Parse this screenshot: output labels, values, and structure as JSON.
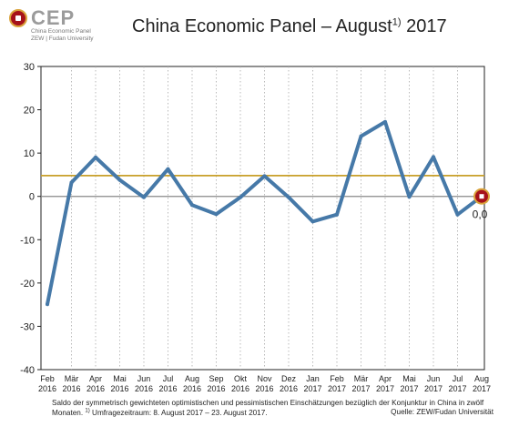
{
  "header": {
    "logo_text": "CEP",
    "logo_sub1": "China Economic Panel",
    "logo_sub2": "ZEW | Fudan University",
    "title_main": "China Economic Panel – August",
    "title_sup": "1)",
    "title_year": "2017"
  },
  "chart_data": {
    "type": "line",
    "x": [
      [
        "Feb",
        "2016"
      ],
      [
        "Mär",
        "2016"
      ],
      [
        "Apr",
        "2016"
      ],
      [
        "Mai",
        "2016"
      ],
      [
        "Jun",
        "2016"
      ],
      [
        "Jul",
        "2016"
      ],
      [
        "Aug",
        "2016"
      ],
      [
        "Sep",
        "2016"
      ],
      [
        "Okt",
        "2016"
      ],
      [
        "Nov",
        "2016"
      ],
      [
        "Dez",
        "2016"
      ],
      [
        "Jan",
        "2017"
      ],
      [
        "Feb",
        "2017"
      ],
      [
        "Mär",
        "2017"
      ],
      [
        "Apr",
        "2017"
      ],
      [
        "Mai",
        "2017"
      ],
      [
        "Jun",
        "2017"
      ],
      [
        "Jul",
        "2017"
      ],
      [
        "Aug",
        "2017"
      ]
    ],
    "series": [
      {
        "values": [
          -24.9,
          3.2,
          9.0,
          3.8,
          -0.2,
          6.3,
          -2.0,
          -4.1,
          -0.2,
          4.7,
          -0.2,
          -5.8,
          -4.2,
          13.9,
          17.2,
          -0.1,
          9.1,
          -4.2,
          0.0
        ],
        "color": "#4679a8"
      }
    ],
    "reference_line": {
      "value": 4.8,
      "color": "#c8a02a"
    },
    "zero_line_color": "#888888",
    "ylim": [
      -40,
      30
    ],
    "yticks": [
      30,
      20,
      10,
      0,
      -10,
      -20,
      -30,
      -40
    ],
    "grid": "vertical dotted",
    "last_point_label": "0,0",
    "marker_color": "#a6121a",
    "marker_ring_color": "#d9a33b"
  },
  "footnote": {
    "text1": "Saldo der symmetrisch gewichteten optimistischen und pessimistischen Einschätzungen bezüglich der Konjunktur in China in zwölf Monaten. ",
    "sup": "1)",
    "text2": " Umfragezeitraum: 8. August 2017 – 23. August 2017.",
    "source": "Quelle: ZEW/Fudan Universität"
  }
}
